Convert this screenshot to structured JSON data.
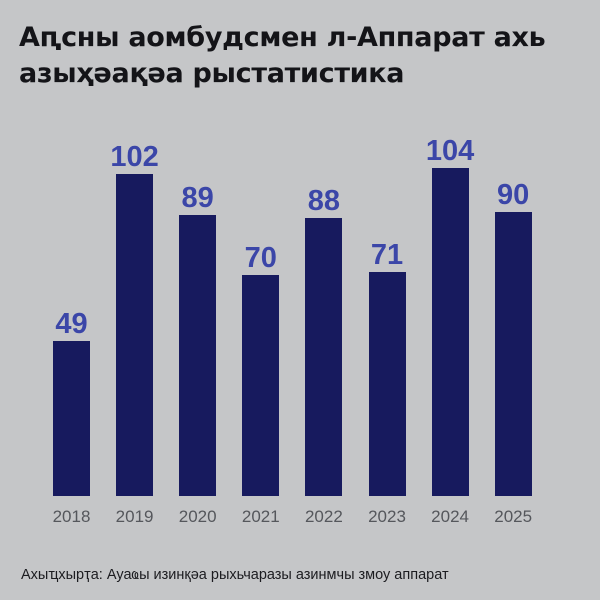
{
  "header": {
    "title": "Аԥсны аомбудсмен л-Аппарат ахь азыҳәақәа рыстатистика"
  },
  "footer": {
    "source": "Ахыҵхырҭа: Ауаҩы изинқәа рыхьчаразы азинмчы змоу аппарат"
  },
  "colors": {
    "background": "#c5c6c8",
    "bar": "#171a5e",
    "value_label": "#3b46a8",
    "year_label": "#55575c",
    "title": "#141418"
  },
  "chart_data": {
    "type": "bar",
    "title": "Аԥсны аомбудсмен л-Аппарат ахь азыҳәақәа рыстатистика",
    "categories": [
      "2018",
      "2019",
      "2020",
      "2021",
      "2022",
      "2023",
      "2024",
      "2025"
    ],
    "values": [
      49,
      102,
      89,
      70,
      88,
      71,
      104,
      90
    ],
    "xlabel": "",
    "ylabel": "",
    "ylim": [
      0,
      104
    ],
    "grid": false,
    "legend": null,
    "data_labels": true,
    "source": "Ахыҵхырҭа: Ауаҩы изинқәа рыхьчаразы азинмчы змоу аппарат"
  }
}
